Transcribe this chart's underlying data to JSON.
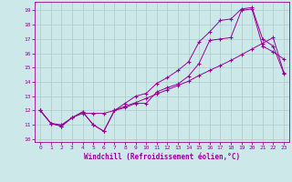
{
  "xlabel": "Windchill (Refroidissement éolien,°C)",
  "background_color": "#cce8e8",
  "grid_color": "#aacccc",
  "line_color": "#990099",
  "xlim": [
    -0.5,
    23.5
  ],
  "ylim": [
    9.8,
    19.6
  ],
  "yticks": [
    10,
    11,
    12,
    13,
    14,
    15,
    16,
    17,
    18,
    19
  ],
  "xticks": [
    0,
    1,
    2,
    3,
    4,
    5,
    6,
    7,
    8,
    9,
    10,
    11,
    12,
    13,
    14,
    15,
    16,
    17,
    18,
    19,
    20,
    21,
    22,
    23
  ],
  "series1_x": [
    0,
    1,
    2,
    3,
    4,
    5,
    6,
    7,
    8,
    9,
    10,
    11,
    12,
    13,
    14,
    15,
    16,
    17,
    18,
    19,
    20,
    21,
    22,
    23
  ],
  "series1_y": [
    12.0,
    11.1,
    10.9,
    11.5,
    11.9,
    11.0,
    10.55,
    12.0,
    12.2,
    12.5,
    12.5,
    13.3,
    13.6,
    13.85,
    14.4,
    15.3,
    16.9,
    17.0,
    17.1,
    19.0,
    19.1,
    16.5,
    16.1,
    15.6
  ],
  "series2_x": [
    0,
    1,
    2,
    3,
    4,
    5,
    6,
    7,
    8,
    9,
    10,
    11,
    12,
    13,
    14,
    15,
    16,
    17,
    18,
    19,
    20,
    21,
    22,
    23
  ],
  "series2_y": [
    12.0,
    11.1,
    10.9,
    11.5,
    11.9,
    11.0,
    10.55,
    12.0,
    12.5,
    13.0,
    13.2,
    13.9,
    14.3,
    14.8,
    15.4,
    16.8,
    17.5,
    18.3,
    18.4,
    19.1,
    19.2,
    17.0,
    16.5,
    14.6
  ],
  "series3_x": [
    0,
    1,
    2,
    3,
    4,
    5,
    6,
    7,
    8,
    9,
    10,
    11,
    12,
    13,
    14,
    15,
    16,
    17,
    18,
    19,
    20,
    21,
    22,
    23
  ],
  "series3_y": [
    12.0,
    11.1,
    11.0,
    11.5,
    11.8,
    11.8,
    11.8,
    12.0,
    12.3,
    12.55,
    12.85,
    13.15,
    13.45,
    13.75,
    14.05,
    14.45,
    14.8,
    15.15,
    15.5,
    15.9,
    16.3,
    16.7,
    17.1,
    14.65
  ]
}
